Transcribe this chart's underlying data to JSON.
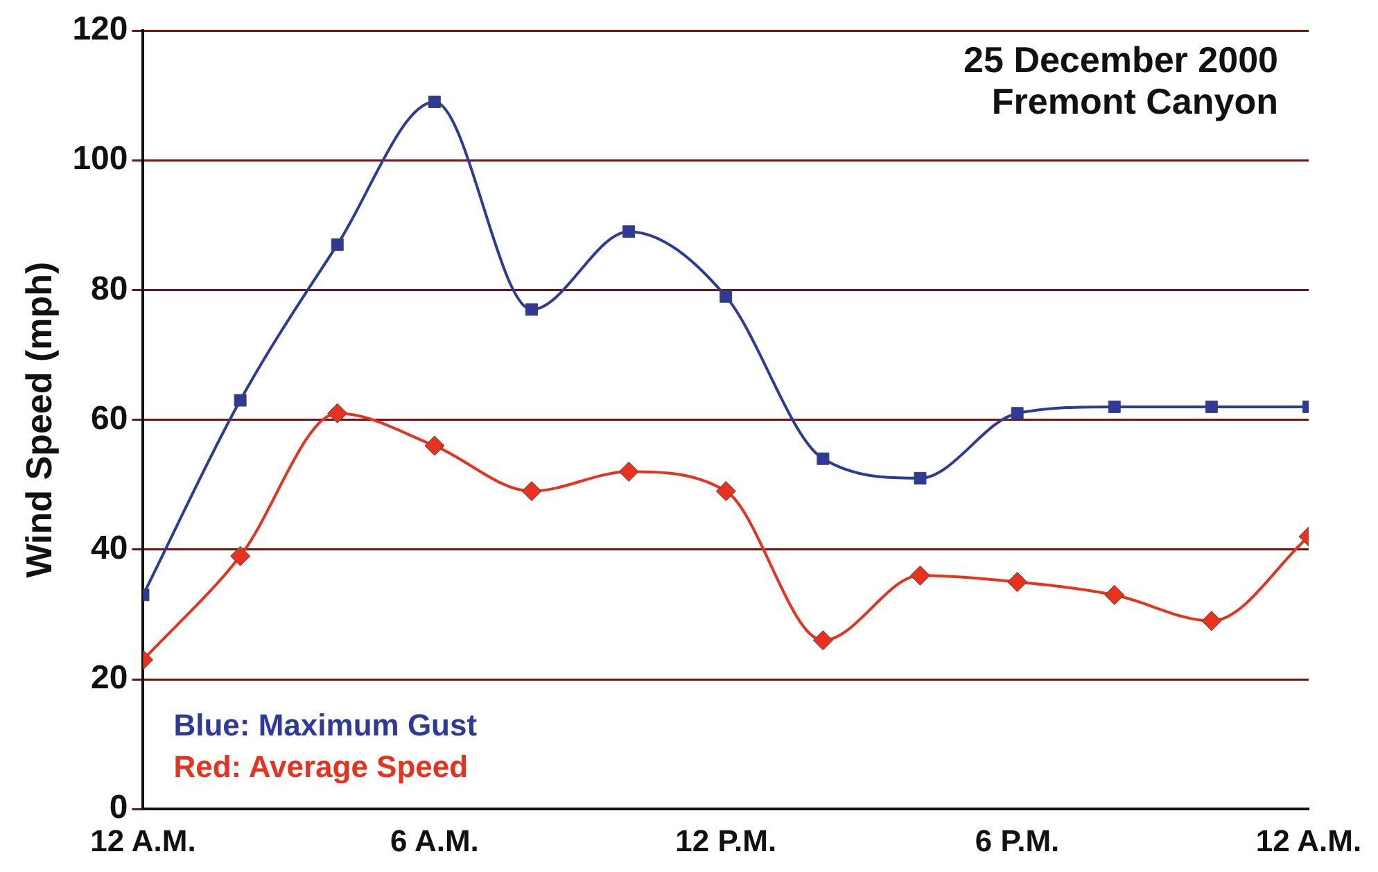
{
  "chart_data": {
    "type": "line",
    "ylabel": "Wind Speed (mph)",
    "annotations": [
      "25 December 2000",
      "Fremont Canyon"
    ],
    "x": [
      "2000-12-25T00:00",
      "2000-12-25T02:00",
      "2000-12-25T04:00",
      "2000-12-25T06:00",
      "2000-12-25T08:00",
      "2000-12-25T10:00",
      "2000-12-25T12:00",
      "2000-12-25T14:00",
      "2000-12-25T16:00",
      "2000-12-25T18:00",
      "2000-12-25T20:00",
      "2000-12-25T22:00",
      "2000-12-26T00:00"
    ],
    "series": [
      {
        "name": "Blue: Maximum Gust",
        "color": "#2e3a9a",
        "marker": "square",
        "values": [
          33,
          63,
          87,
          109,
          77,
          89,
          79,
          54,
          51,
          61,
          62,
          62,
          62
        ]
      },
      {
        "name": "Red: Average Speed",
        "color": "#e8321e",
        "marker": "diamond",
        "values": [
          23,
          39,
          61,
          56,
          49,
          52,
          49,
          26,
          36,
          35,
          33,
          29,
          42
        ]
      }
    ],
    "xlim": [
      "2000-12-25T00:00",
      "2000-12-26T00:00"
    ],
    "xticks": [
      {
        "value": "2000-12-25T00:00",
        "label": "12 A.M."
      },
      {
        "value": "2000-12-25T06:00",
        "label": "6 A.M."
      },
      {
        "value": "2000-12-25T12:00",
        "label": "12 P.M."
      },
      {
        "value": "2000-12-25T18:00",
        "label": "6 P.M."
      },
      {
        "value": "2000-12-26T00:00",
        "label": "12 A.M."
      }
    ],
    "ylim": [
      0,
      120
    ],
    "yticks": [
      0,
      20,
      40,
      60,
      80,
      100,
      120
    ],
    "grid": "y",
    "legend": "bottom left"
  }
}
